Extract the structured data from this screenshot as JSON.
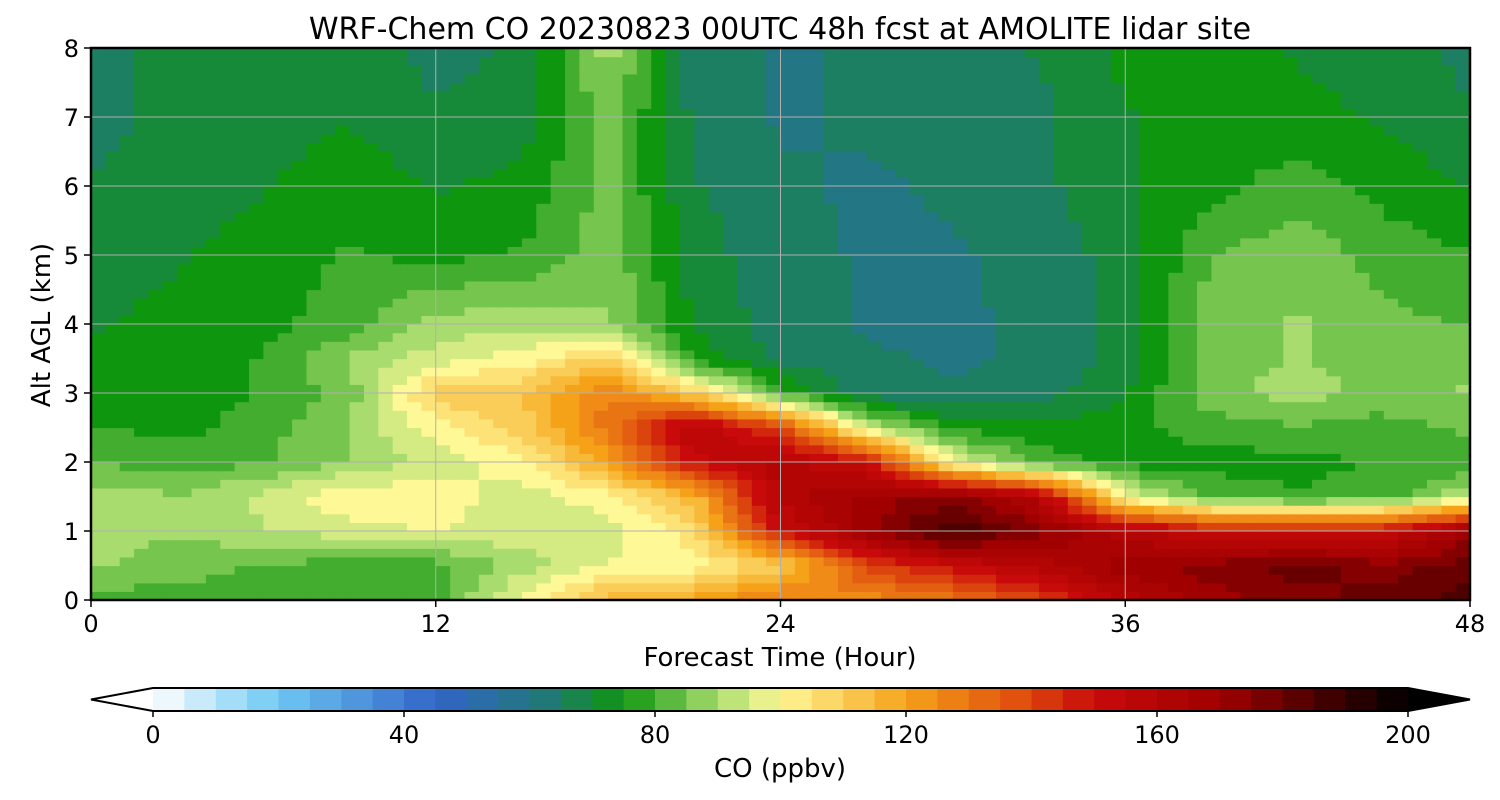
{
  "chart_data": {
    "type": "heatmap",
    "title": "WRF-Chem CO  20230823 00UTC 48h fcst at AMOLITE lidar site",
    "xlabel": "Forecast Time (Hour)",
    "ylabel": "Alt AGL (km)",
    "x_ticks": [
      "0",
      "12",
      "24",
      "36",
      "48"
    ],
    "y_ticks": [
      "0",
      "1",
      "2",
      "3",
      "4",
      "5",
      "6",
      "7",
      "8"
    ],
    "xlim": [
      0,
      48
    ],
    "ylim": [
      0,
      8
    ],
    "grid": true,
    "colorbar": {
      "label": "CO  (ppbv)",
      "ticks": [
        "0",
        "40",
        "80",
        "120",
        "160",
        "200"
      ],
      "range": [
        0,
        200
      ],
      "extend": "both",
      "colors": [
        {
          "v": 0,
          "c": "#ffffff"
        },
        {
          "v": 20,
          "c": "#6ec8f2"
        },
        {
          "v": 45,
          "c": "#3264c8"
        },
        {
          "v": 62,
          "c": "#21787a"
        },
        {
          "v": 75,
          "c": "#0f960f"
        },
        {
          "v": 90,
          "c": "#a8dc6e"
        },
        {
          "v": 100,
          "c": "#fff896"
        },
        {
          "v": 120,
          "c": "#f5a219"
        },
        {
          "v": 138,
          "c": "#e0500f"
        },
        {
          "v": 150,
          "c": "#c80a0a"
        },
        {
          "v": 170,
          "c": "#a00000"
        },
        {
          "v": 190,
          "c": "#320000"
        },
        {
          "v": 200,
          "c": "#000000"
        }
      ]
    },
    "x": [
      0,
      3,
      6,
      9,
      12,
      15,
      18,
      21,
      24,
      27,
      30,
      33,
      36,
      39,
      42,
      45,
      48
    ],
    "y": [
      0,
      0.5,
      1,
      1.5,
      2,
      2.5,
      3,
      3.5,
      4,
      5,
      6,
      7,
      8
    ],
    "z": [
      [
        80,
        80,
        80,
        80,
        80,
        100,
        115,
        120,
        130,
        125,
        130,
        140,
        160,
        170,
        175,
        180,
        185
      ],
      [
        88,
        85,
        82,
        80,
        80,
        90,
        98,
        100,
        110,
        140,
        150,
        160,
        170,
        175,
        180,
        175,
        180
      ],
      [
        90,
        88,
        92,
        95,
        98,
        95,
        95,
        105,
        150,
        170,
        188,
        175,
        160,
        150,
        150,
        150,
        170
      ],
      [
        90,
        88,
        94,
        102,
        100,
        95,
        100,
        115,
        160,
        170,
        175,
        160,
        98,
        82,
        78,
        80,
        92
      ],
      [
        82,
        80,
        82,
        88,
        95,
        100,
        120,
        150,
        160,
        150,
        98,
        80,
        75,
        75,
        76,
        78,
        78
      ],
      [
        78,
        76,
        80,
        88,
        100,
        110,
        130,
        160,
        140,
        95,
        76,
        74,
        76,
        80,
        82,
        80,
        84
      ],
      [
        75,
        74,
        78,
        85,
        110,
        112,
        128,
        110,
        80,
        64,
        63,
        65,
        72,
        86,
        90,
        86,
        88
      ],
      [
        74,
        73,
        78,
        88,
        95,
        100,
        110,
        76,
        66,
        63,
        62,
        63,
        70,
        84,
        88,
        84,
        86
      ],
      [
        72,
        74,
        76,
        80,
        90,
        90,
        88,
        72,
        65,
        62,
        62,
        63,
        70,
        86,
        88,
        84,
        82
      ],
      [
        70,
        72,
        75,
        78,
        76,
        78,
        86,
        70,
        64,
        62,
        62,
        64,
        70,
        82,
        86,
        80,
        78
      ],
      [
        68,
        70,
        72,
        76,
        72,
        74,
        84,
        68,
        63,
        62,
        63,
        66,
        72,
        76,
        80,
        76,
        72
      ],
      [
        65,
        70,
        70,
        72,
        68,
        70,
        85,
        66,
        62,
        63,
        64,
        66,
        72,
        74,
        74,
        72,
        68
      ],
      [
        64,
        70,
        70,
        70,
        66,
        68,
        90,
        65,
        62,
        63,
        65,
        68,
        74,
        74,
        72,
        70,
        66
      ]
    ]
  }
}
